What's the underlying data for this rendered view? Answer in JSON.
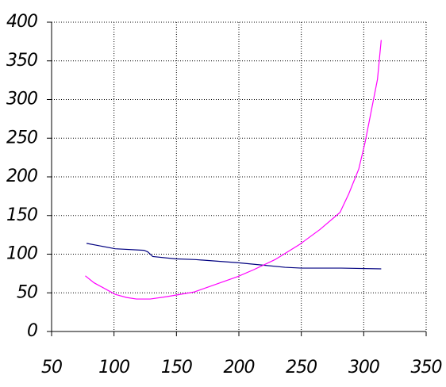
{
  "chart_data": {
    "type": "line",
    "series": [
      {
        "color": "#000080",
        "x": [
          78,
          101,
          124,
          127,
          131,
          149,
          165,
          199,
          218,
          237,
          250,
          264,
          282,
          314
        ],
        "values": [
          114,
          107,
          105,
          103,
          97,
          94,
          93,
          89,
          86,
          83,
          82,
          82,
          82,
          81
        ]
      },
      {
        "color": "#ff00ff",
        "x": [
          77,
          84,
          101,
          110,
          118,
          129,
          142,
          164,
          199,
          212,
          229,
          249,
          265,
          281,
          288,
          296,
          301,
          306,
          311,
          314
        ],
        "values": [
          72,
          63,
          48,
          44,
          42,
          42,
          45,
          51,
          71,
          80,
          93,
          113,
          132,
          154,
          178,
          210,
          244,
          285,
          326,
          377
        ]
      }
    ],
    "xlim": [
      50,
      350
    ],
    "xticks": [
      50,
      100,
      150,
      200,
      250,
      300,
      350
    ],
    "ylim": [
      0,
      400
    ],
    "yticks": [
      0,
      50,
      100,
      150,
      200,
      250,
      300,
      350,
      400
    ],
    "grid": true
  }
}
